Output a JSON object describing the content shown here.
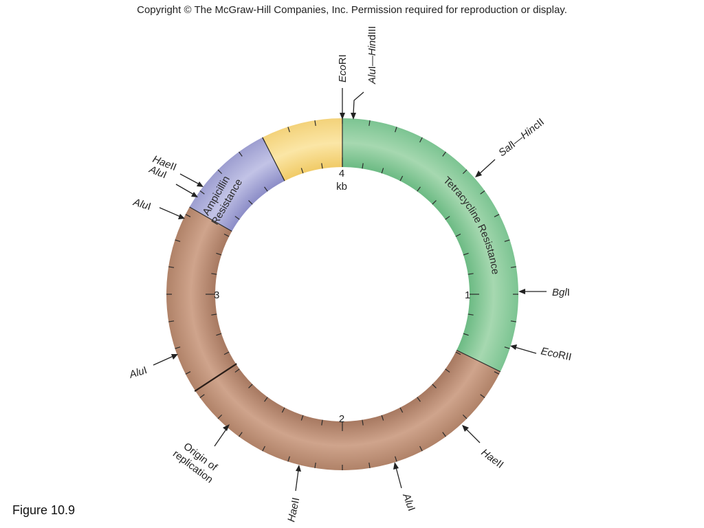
{
  "header": {
    "copyright": "Copyright © The McGraw-Hill Companies, Inc. Permission required for reproduction or display."
  },
  "figure_label": "Figure 10.9",
  "plasmid": {
    "segments": [
      {
        "id": "tet",
        "label": "Tetracycline Resistance",
        "color_light": "#a6d8b0",
        "color_dark": "#6fbc86",
        "start_kb": 0.0,
        "end_kb": 1.29
      },
      {
        "id": "brown",
        "label": "",
        "color_light": "#cfa48c",
        "color_dark": "#a97b63",
        "start_kb": 1.29,
        "end_kb": 3.33
      },
      {
        "id": "amp",
        "label_line1": "Ampicillin",
        "label_line2": "Resistance",
        "color_light": "#c2c3e6",
        "color_dark": "#8f90c9",
        "start_kb": 3.33,
        "end_kb": 3.7
      },
      {
        "id": "yellow",
        "label": "",
        "color_light": "#fbe6a6",
        "color_dark": "#f1cc6a",
        "start_kb": 3.7,
        "end_kb": 4.0
      }
    ],
    "scale_labels": [
      {
        "kb": 0,
        "text": "4",
        "text2": "kb"
      },
      {
        "kb": 1,
        "text": "1"
      },
      {
        "kb": 2,
        "text": "2"
      },
      {
        "kb": 3,
        "text": "3"
      }
    ],
    "origin_label_line1": "Origin of",
    "origin_label_line2": "replication",
    "sites": [
      {
        "italic": "Eco",
        "normal": "RI",
        "kb": 0.0
      },
      {
        "italic": "Alu",
        "normal": "I—",
        "italic2": "Hin",
        "normal2": "dIII",
        "kb": 0.03
      },
      {
        "italic": "Sal",
        "normal": "I—",
        "italic2": "Hin",
        "normal2": "cII",
        "kb": 0.42
      },
      {
        "italic": "Bgl",
        "normal": "I",
        "kb": 1.0
      },
      {
        "italic": "Eco",
        "normal": "RII",
        "kb": 1.28
      },
      {
        "italic": "Hae",
        "normal": "II",
        "kb": 1.62
      },
      {
        "italic": "Alu",
        "normal": "I",
        "kb": 1.86
      },
      {
        "italic": "Hae",
        "normal": "II",
        "kb": 2.18
      },
      {
        "italic": "Alu",
        "normal": "I",
        "kb": 2.68
      },
      {
        "italic": "Alu",
        "normal": "I",
        "kb": 3.35
      },
      {
        "italic": "Alu",
        "normal": "I",
        "kb": 3.5
      },
      {
        "italic": "Hae",
        "normal": "II",
        "kb": 3.56
      }
    ]
  }
}
